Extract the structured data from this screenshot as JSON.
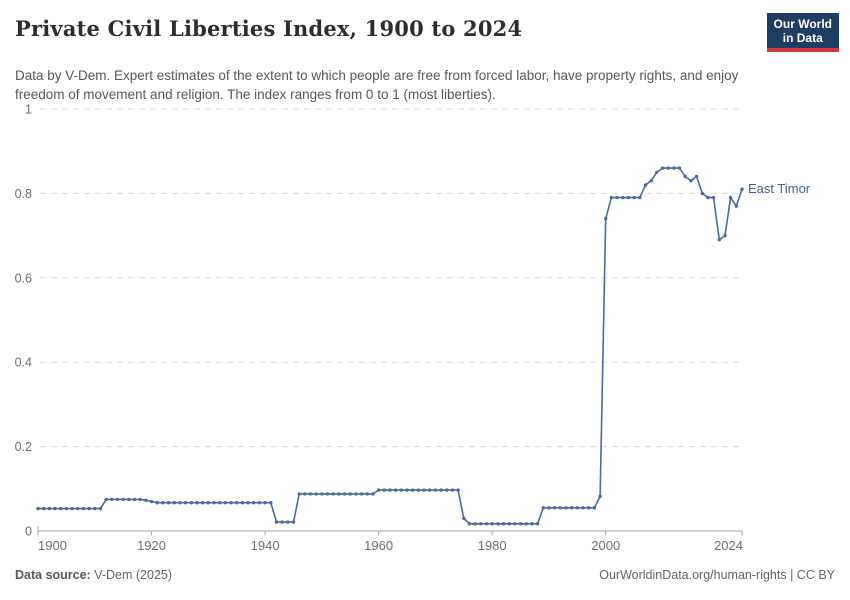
{
  "header": {
    "title": "Private Civil Liberties Index, 1900 to 2024",
    "subtitle": "Data by V-Dem. Expert estimates of the extent to which people are free from forced labor, have property rights, and enjoy freedom of movement and religion. The index ranges from 0 to 1 (most liberties).",
    "logo": {
      "line1": "Our World",
      "line2": "in Data",
      "bg_color": "#1d3d63",
      "accent_color": "#d7333f"
    }
  },
  "chart_data": {
    "type": "line",
    "title": "Private Civil Liberties Index, 1900 to 2024",
    "xlabel": "",
    "ylabel": "",
    "xlim": [
      1900,
      2024
    ],
    "ylim": [
      0,
      1
    ],
    "xticks": [
      1900,
      1920,
      1940,
      1960,
      1980,
      2000,
      2024
    ],
    "yticks": [
      0,
      0.2,
      0.4,
      0.6,
      0.8,
      1
    ],
    "ytick_labels": [
      "0",
      "0.2",
      "0.4",
      "0.6",
      "0.8",
      "1"
    ],
    "grid": "horizontal dashed gridlines at each y tick",
    "legend_position": "label at end of line",
    "line_color": "#4C6A9C",
    "label_color": "#446192",
    "marker": "circle, every year",
    "series": [
      {
        "name": "East Timor",
        "x_start": 1900,
        "x_step": 1,
        "values": [
          0.053,
          0.053,
          0.053,
          0.053,
          0.053,
          0.053,
          0.053,
          0.053,
          0.053,
          0.053,
          0.053,
          0.053,
          0.075,
          0.075,
          0.075,
          0.075,
          0.075,
          0.075,
          0.075,
          0.073,
          0.07,
          0.067,
          0.067,
          0.067,
          0.067,
          0.067,
          0.067,
          0.067,
          0.067,
          0.067,
          0.067,
          0.067,
          0.067,
          0.067,
          0.067,
          0.067,
          0.067,
          0.067,
          0.067,
          0.067,
          0.067,
          0.067,
          0.021,
          0.021,
          0.021,
          0.021,
          0.088,
          0.088,
          0.088,
          0.088,
          0.088,
          0.088,
          0.088,
          0.088,
          0.088,
          0.088,
          0.088,
          0.088,
          0.088,
          0.088,
          0.097,
          0.097,
          0.097,
          0.097,
          0.097,
          0.097,
          0.097,
          0.097,
          0.097,
          0.097,
          0.097,
          0.097,
          0.097,
          0.097,
          0.097,
          0.03,
          0.017,
          0.017,
          0.017,
          0.017,
          0.017,
          0.017,
          0.017,
          0.017,
          0.017,
          0.017,
          0.017,
          0.017,
          0.017,
          0.055,
          0.055,
          0.055,
          0.055,
          0.055,
          0.055,
          0.055,
          0.055,
          0.055,
          0.055,
          0.082,
          0.74,
          0.79,
          0.79,
          0.79,
          0.79,
          0.79,
          0.79,
          0.82,
          0.83,
          0.85,
          0.86,
          0.86,
          0.86,
          0.86,
          0.84,
          0.83,
          0.84,
          0.8,
          0.79,
          0.79,
          0.69,
          0.7,
          0.79,
          0.77,
          0.81
        ]
      }
    ]
  },
  "footer": {
    "source_label": "Data source:",
    "source_value": "V-Dem (2025)",
    "credit": "OurWorldinData.org/human-rights | CC BY"
  }
}
